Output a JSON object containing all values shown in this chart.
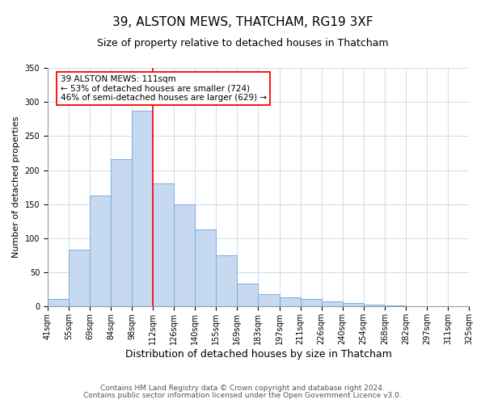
{
  "title": "39, ALSTON MEWS, THATCHAM, RG19 3XF",
  "subtitle": "Size of property relative to detached houses in Thatcham",
  "xlabel": "Distribution of detached houses by size in Thatcham",
  "ylabel": "Number of detached properties",
  "bar_labels": [
    "41sqm",
    "55sqm",
    "69sqm",
    "84sqm",
    "98sqm",
    "112sqm",
    "126sqm",
    "140sqm",
    "155sqm",
    "169sqm",
    "183sqm",
    "197sqm",
    "211sqm",
    "226sqm",
    "240sqm",
    "254sqm",
    "268sqm",
    "282sqm",
    "297sqm",
    "311sqm",
    "325sqm"
  ],
  "bar_values": [
    11,
    84,
    163,
    216,
    287,
    181,
    150,
    113,
    75,
    34,
    18,
    13,
    11,
    8,
    5,
    3,
    2,
    1,
    0,
    1
  ],
  "bar_color": "#c6d9f0",
  "bar_edge_color": "#7aaddc",
  "property_label": "39 ALSTON MEWS: 111sqm",
  "annotation_line1": "← 53% of detached houses are smaller (724)",
  "annotation_line2": "46% of semi-detached houses are larger (629) →",
  "red_line_label_index": 5,
  "ylim": [
    0,
    350
  ],
  "yticks": [
    0,
    50,
    100,
    150,
    200,
    250,
    300,
    350
  ],
  "footnote1": "Contains HM Land Registry data © Crown copyright and database right 2024.",
  "footnote2": "Contains public sector information licensed under the Open Government Licence v3.0.",
  "title_fontsize": 11,
  "subtitle_fontsize": 9,
  "xlabel_fontsize": 9,
  "ylabel_fontsize": 8,
  "tick_fontsize": 7,
  "annotation_fontsize": 7.5,
  "footnote_fontsize": 6.5
}
